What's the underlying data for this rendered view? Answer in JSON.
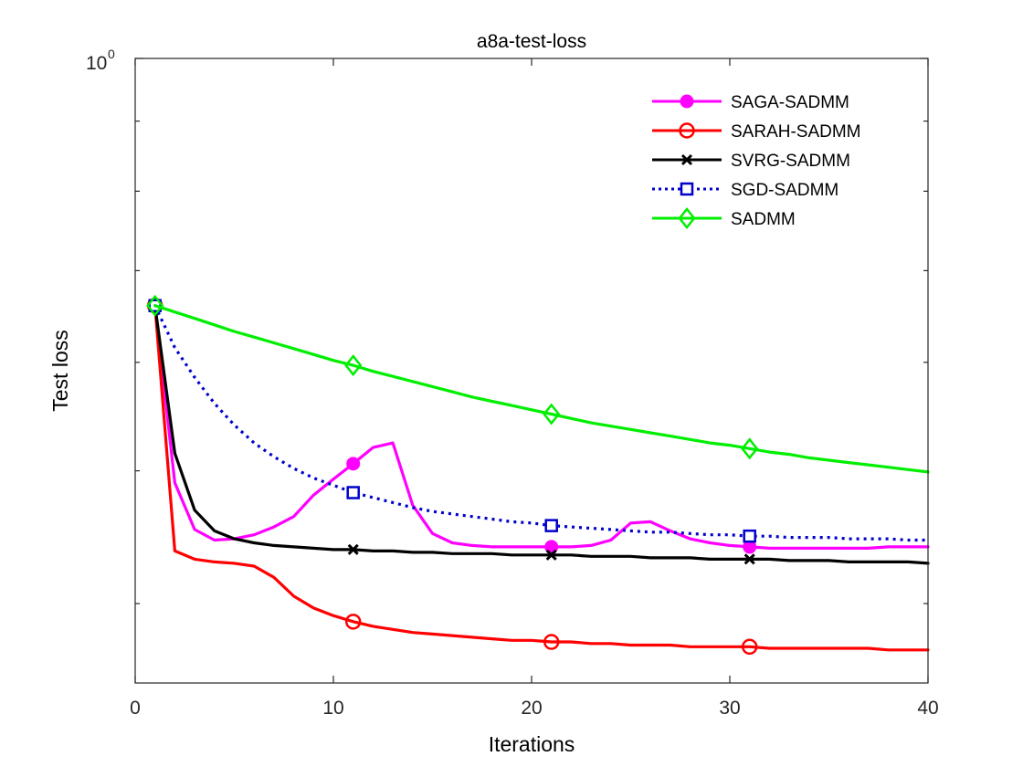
{
  "chart_data": {
    "type": "line",
    "title": "a8a-test-loss",
    "xlabel": "Iterations",
    "ylabel": "Test loss",
    "xlim": [
      0,
      40
    ],
    "ylim": [
      0.35,
      1.0
    ],
    "yscale": "log",
    "grid": false,
    "legend_position": "top-right",
    "x_ticks": [
      0,
      10,
      20,
      30,
      40
    ],
    "x_tick_labels": [
      "0",
      "10",
      "20",
      "30",
      "40"
    ],
    "y_tick_label": {
      "base": "10",
      "exponent": "0"
    },
    "x": [
      1,
      2,
      3,
      4,
      5,
      6,
      7,
      8,
      9,
      10,
      11,
      12,
      13,
      14,
      15,
      16,
      17,
      18,
      19,
      20,
      21,
      22,
      23,
      24,
      25,
      26,
      27,
      28,
      29,
      30,
      31,
      32,
      33,
      34,
      35,
      36,
      37,
      38,
      39,
      40
    ],
    "series": [
      {
        "name": "SAGA-SADMM",
        "color": "#ff00ff",
        "line_style": "solid",
        "marker": "filled-circle",
        "marker_x": [
          1,
          11,
          21,
          31
        ],
        "values": [
          0.66,
          0.49,
          0.453,
          0.445,
          0.446,
          0.449,
          0.455,
          0.463,
          0.48,
          0.493,
          0.506,
          0.52,
          0.524,
          0.472,
          0.45,
          0.443,
          0.441,
          0.44,
          0.44,
          0.44,
          0.44,
          0.44,
          0.441,
          0.445,
          0.458,
          0.459,
          0.452,
          0.446,
          0.443,
          0.441,
          0.44,
          0.439,
          0.439,
          0.439,
          0.439,
          0.439,
          0.439,
          0.44,
          0.44,
          0.44
        ]
      },
      {
        "name": "SARAH-SADMM",
        "color": "#ff0000",
        "line_style": "solid",
        "marker": "open-circle",
        "marker_x": [
          1,
          11,
          21,
          31
        ],
        "values": [
          0.66,
          0.437,
          0.431,
          0.429,
          0.428,
          0.426,
          0.418,
          0.405,
          0.397,
          0.392,
          0.388,
          0.385,
          0.383,
          0.381,
          0.38,
          0.379,
          0.378,
          0.377,
          0.376,
          0.376,
          0.375,
          0.375,
          0.374,
          0.374,
          0.373,
          0.373,
          0.373,
          0.372,
          0.372,
          0.372,
          0.372,
          0.371,
          0.371,
          0.371,
          0.371,
          0.371,
          0.371,
          0.37,
          0.37,
          0.37
        ]
      },
      {
        "name": "SVRG-SADMM",
        "color": "#000000",
        "line_style": "solid",
        "marker": "x-cross",
        "marker_x": [
          1,
          11,
          21,
          31
        ],
        "values": [
          0.66,
          0.515,
          0.468,
          0.452,
          0.446,
          0.443,
          0.441,
          0.44,
          0.439,
          0.438,
          0.438,
          0.437,
          0.437,
          0.436,
          0.436,
          0.435,
          0.435,
          0.435,
          0.434,
          0.434,
          0.434,
          0.434,
          0.433,
          0.433,
          0.433,
          0.432,
          0.432,
          0.432,
          0.431,
          0.431,
          0.431,
          0.431,
          0.43,
          0.43,
          0.43,
          0.429,
          0.429,
          0.429,
          0.429,
          0.428
        ]
      },
      {
        "name": "SGD-SADMM",
        "color": "#0000cc",
        "line_style": "dotted",
        "marker": "open-square",
        "marker_x": [
          1,
          11,
          21,
          31
        ],
        "values": [
          0.66,
          0.615,
          0.585,
          0.56,
          0.54,
          0.524,
          0.512,
          0.502,
          0.494,
          0.488,
          0.482,
          0.478,
          0.474,
          0.47,
          0.467,
          0.465,
          0.463,
          0.461,
          0.459,
          0.458,
          0.456,
          0.455,
          0.454,
          0.453,
          0.452,
          0.451,
          0.451,
          0.45,
          0.449,
          0.449,
          0.448,
          0.448,
          0.447,
          0.447,
          0.447,
          0.446,
          0.446,
          0.446,
          0.445,
          0.445
        ]
      },
      {
        "name": "SADMM",
        "color": "#00ee00",
        "line_style": "solid",
        "marker": "open-diamond",
        "marker_x": [
          1,
          11,
          21,
          31
        ],
        "values": [
          0.66,
          0.653,
          0.646,
          0.639,
          0.632,
          0.626,
          0.62,
          0.614,
          0.608,
          0.602,
          0.597,
          0.591,
          0.586,
          0.581,
          0.576,
          0.571,
          0.566,
          0.562,
          0.558,
          0.554,
          0.55,
          0.546,
          0.542,
          0.539,
          0.536,
          0.533,
          0.53,
          0.527,
          0.524,
          0.522,
          0.519,
          0.516,
          0.514,
          0.511,
          0.509,
          0.507,
          0.505,
          0.503,
          0.501,
          0.499
        ]
      }
    ]
  }
}
